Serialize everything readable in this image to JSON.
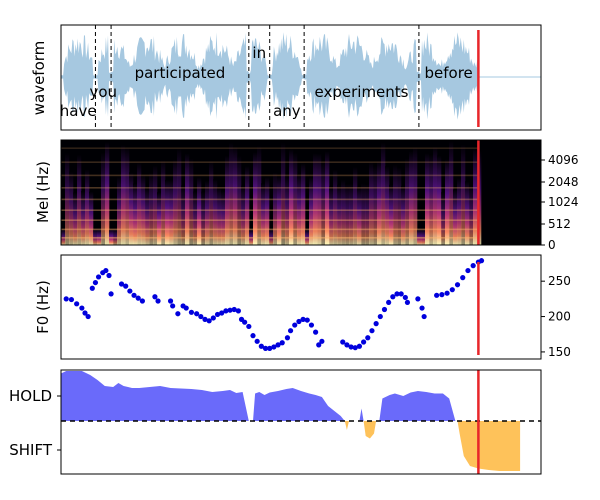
{
  "chart_data": [
    {
      "type": "area",
      "panel": "waveform",
      "ylabel": "waveform",
      "fill_color": "#a6c8e0",
      "words": [
        {
          "text": "have",
          "start": 0.0,
          "end": 0.33,
          "row": 3
        },
        {
          "text": "you",
          "start": 0.33,
          "end": 0.48,
          "row": 2
        },
        {
          "text": "participated",
          "start": 0.48,
          "end": 1.8,
          "row": 1
        },
        {
          "text": "in",
          "start": 1.8,
          "end": 2.0,
          "row": 0
        },
        {
          "text": "any",
          "start": 2.0,
          "end": 2.33,
          "row": 3
        },
        {
          "text": "experiments",
          "start": 2.33,
          "end": 3.43,
          "row": 2
        },
        {
          "text": "before",
          "start": 3.43,
          "end": 4.0,
          "row": 1
        }
      ],
      "xlim": [
        0,
        4.6
      ],
      "marker_x": 4.0,
      "marker_color": "#e8262a"
    },
    {
      "type": "heatmap",
      "panel": "mel",
      "ylabel": "Mel (Hz)",
      "yticks": [
        "0",
        "512",
        "1024",
        "2048",
        "4096"
      ],
      "marker_x": 4.0,
      "marker_color": "#e8262a"
    },
    {
      "type": "scatter",
      "panel": "f0",
      "ylabel": "F0 (Hz)",
      "yticks": [
        150,
        200,
        250
      ],
      "ylim": [
        140,
        287
      ],
      "point_color": "#0000dd",
      "points": [
        [
          0.05,
          225
        ],
        [
          0.1,
          224
        ],
        [
          0.15,
          218
        ],
        [
          0.2,
          212
        ],
        [
          0.23,
          205
        ],
        [
          0.26,
          200
        ],
        [
          0.3,
          240
        ],
        [
          0.33,
          248
        ],
        [
          0.36,
          256
        ],
        [
          0.4,
          262
        ],
        [
          0.43,
          265
        ],
        [
          0.46,
          258
        ],
        [
          0.48,
          232
        ],
        [
          0.58,
          246
        ],
        [
          0.62,
          243
        ],
        [
          0.66,
          236
        ],
        [
          0.7,
          230
        ],
        [
          0.74,
          226
        ],
        [
          0.78,
          222
        ],
        [
          0.9,
          228
        ],
        [
          0.93,
          222
        ],
        [
          1.05,
          222
        ],
        [
          1.07,
          215
        ],
        [
          1.12,
          204
        ],
        [
          1.17,
          215
        ],
        [
          1.2,
          212
        ],
        [
          1.25,
          206
        ],
        [
          1.3,
          204
        ],
        [
          1.34,
          200
        ],
        [
          1.38,
          196
        ],
        [
          1.42,
          194
        ],
        [
          1.46,
          198
        ],
        [
          1.5,
          203
        ],
        [
          1.54,
          205
        ],
        [
          1.58,
          208
        ],
        [
          1.62,
          209
        ],
        [
          1.66,
          210
        ],
        [
          1.7,
          208
        ],
        [
          1.73,
          196
        ],
        [
          1.76,
          192
        ],
        [
          1.8,
          186
        ],
        [
          1.84,
          173
        ],
        [
          1.88,
          165
        ],
        [
          1.92,
          158
        ],
        [
          1.96,
          155
        ],
        [
          2.0,
          155
        ],
        [
          2.04,
          157
        ],
        [
          2.08,
          160
        ],
        [
          2.12,
          163
        ],
        [
          2.17,
          170
        ],
        [
          2.2,
          180
        ],
        [
          2.24,
          188
        ],
        [
          2.28,
          193
        ],
        [
          2.32,
          196
        ],
        [
          2.36,
          195
        ],
        [
          2.4,
          188
        ],
        [
          2.44,
          178
        ],
        [
          2.47,
          160
        ],
        [
          2.5,
          165
        ],
        [
          2.7,
          164
        ],
        [
          2.74,
          160
        ],
        [
          2.78,
          157
        ],
        [
          2.82,
          156
        ],
        [
          2.86,
          158
        ],
        [
          2.9,
          164
        ],
        [
          2.94,
          170
        ],
        [
          2.98,
          180
        ],
        [
          3.02,
          190
        ],
        [
          3.06,
          200
        ],
        [
          3.1,
          210
        ],
        [
          3.14,
          220
        ],
        [
          3.18,
          228
        ],
        [
          3.22,
          232
        ],
        [
          3.26,
          232
        ],
        [
          3.3,
          227
        ],
        [
          3.32,
          220
        ],
        [
          3.42,
          225
        ],
        [
          3.46,
          212
        ],
        [
          3.48,
          200
        ],
        [
          3.6,
          230
        ],
        [
          3.65,
          231
        ],
        [
          3.7,
          233
        ],
        [
          3.75,
          238
        ],
        [
          3.8,
          245
        ],
        [
          3.85,
          255
        ],
        [
          3.9,
          265
        ],
        [
          3.95,
          272
        ],
        [
          4.0,
          277
        ],
        [
          4.03,
          279
        ]
      ],
      "marker_x": 4.0,
      "marker_color": "#e8262a"
    },
    {
      "type": "area",
      "panel": "turn",
      "yticks": [
        "HOLD",
        "SHIFT"
      ],
      "hold_color": "#6a6afa",
      "shift_color": "#fec25a",
      "baseline_style": "dashed",
      "hold_series": [
        [
          0.0,
          0.95
        ],
        [
          0.05,
          1.0
        ],
        [
          0.12,
          1.0
        ],
        [
          0.2,
          1.0
        ],
        [
          0.28,
          0.92
        ],
        [
          0.35,
          0.82
        ],
        [
          0.42,
          0.7
        ],
        [
          0.5,
          0.68
        ],
        [
          0.55,
          0.76
        ],
        [
          0.6,
          0.7
        ],
        [
          0.68,
          0.66
        ],
        [
          0.75,
          0.66
        ],
        [
          0.85,
          0.68
        ],
        [
          0.95,
          0.7
        ],
        [
          1.05,
          0.66
        ],
        [
          1.15,
          0.65
        ],
        [
          1.25,
          0.64
        ],
        [
          1.35,
          0.62
        ],
        [
          1.45,
          0.58
        ],
        [
          1.55,
          0.6
        ],
        [
          1.62,
          0.62
        ],
        [
          1.68,
          0.56
        ],
        [
          1.74,
          0.58
        ],
        [
          1.8,
          0.0
        ],
        [
          1.84,
          0.0
        ],
        [
          1.86,
          0.55
        ],
        [
          1.9,
          0.58
        ],
        [
          1.95,
          0.52
        ],
        [
          2.0,
          0.57
        ],
        [
          2.08,
          0.6
        ],
        [
          2.16,
          0.64
        ],
        [
          2.22,
          0.66
        ],
        [
          2.3,
          0.6
        ],
        [
          2.38,
          0.55
        ],
        [
          2.44,
          0.52
        ],
        [
          2.5,
          0.48
        ],
        [
          2.56,
          0.3
        ],
        [
          2.62,
          0.2
        ],
        [
          2.68,
          0.1
        ],
        [
          2.72,
          0.0
        ],
        [
          2.86,
          0.0
        ],
        [
          2.88,
          0.25
        ],
        [
          2.9,
          0.0
        ],
        [
          3.05,
          0.0
        ],
        [
          3.08,
          0.45
        ],
        [
          3.15,
          0.52
        ],
        [
          3.2,
          0.55
        ],
        [
          3.28,
          0.5
        ],
        [
          3.35,
          0.57
        ],
        [
          3.42,
          0.6
        ],
        [
          3.5,
          0.58
        ],
        [
          3.58,
          0.55
        ],
        [
          3.66,
          0.55
        ],
        [
          3.72,
          0.45
        ],
        [
          3.78,
          0.0
        ],
        [
          4.6,
          0.0
        ]
      ],
      "shift_series": [
        [
          0.0,
          0.0
        ],
        [
          2.72,
          0.0
        ],
        [
          2.74,
          -0.18
        ],
        [
          2.76,
          0.0
        ],
        [
          2.9,
          0.0
        ],
        [
          2.92,
          -0.3
        ],
        [
          2.96,
          -0.35
        ],
        [
          3.0,
          -0.25
        ],
        [
          3.02,
          0.0
        ],
        [
          3.8,
          0.0
        ],
        [
          3.82,
          -0.25
        ],
        [
          3.86,
          -0.7
        ],
        [
          3.92,
          -0.9
        ],
        [
          4.0,
          -0.95
        ],
        [
          4.1,
          -0.98
        ],
        [
          4.2,
          -1.0
        ],
        [
          4.3,
          -1.0
        ],
        [
          4.4,
          -1.0
        ],
        [
          4.4,
          0.0
        ]
      ],
      "marker_x": 4.0,
      "marker_color": "#e8262a"
    }
  ]
}
